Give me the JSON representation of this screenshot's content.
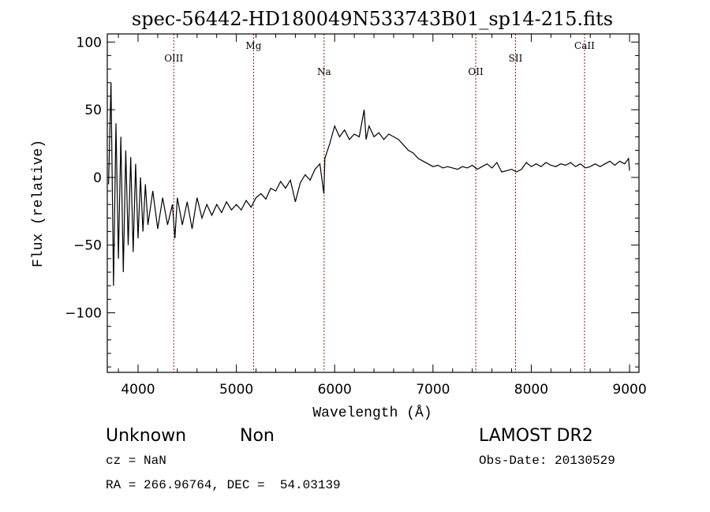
{
  "chart_data": {
    "type": "line",
    "title": "spec-56442-HD180049N533743B01_sp14-215.fits",
    "xlabel": "Wavelength (Å)",
    "ylabel": "Flux (relative)",
    "xlim": [
      3687,
      9096
    ],
    "ylim": [
      -144,
      106
    ],
    "xticks": [
      4000,
      5000,
      6000,
      7000,
      8000,
      9000
    ],
    "yticks": [
      100,
      50,
      0,
      -50,
      -100
    ],
    "xtick_labels": [
      "4000",
      "5000",
      "6000",
      "7000",
      "8000",
      "9000"
    ],
    "ytick_labels": [
      "100",
      "50",
      "0",
      "−50",
      "−100"
    ],
    "grid": false,
    "lines": [
      {
        "label": "OIII",
        "x": 4363
      },
      {
        "label": "Mg",
        "x": 5175
      },
      {
        "label": "Na",
        "x": 5893
      },
      {
        "label": "OII",
        "x": 7435
      },
      {
        "label": "SII",
        "x": 7840
      },
      {
        "label": "CaII",
        "x": 8542
      }
    ],
    "series": [
      {
        "name": "flux",
        "x": [
          3700,
          3725,
          3750,
          3775,
          3800,
          3825,
          3850,
          3875,
          3900,
          3925,
          3950,
          3975,
          4000,
          4025,
          4050,
          4075,
          4100,
          4150,
          4200,
          4250,
          4300,
          4350,
          4375,
          4400,
          4450,
          4500,
          4550,
          4600,
          4650,
          4700,
          4750,
          4800,
          4850,
          4900,
          4950,
          5000,
          5050,
          5100,
          5150,
          5200,
          5250,
          5300,
          5350,
          5400,
          5450,
          5500,
          5550,
          5600,
          5650,
          5700,
          5750,
          5800,
          5850,
          5890,
          5900,
          5950,
          6000,
          6050,
          6100,
          6150,
          6200,
          6250,
          6300,
          6320,
          6350,
          6400,
          6450,
          6500,
          6550,
          6600,
          6650,
          6700,
          6750,
          6800,
          6850,
          6900,
          6950,
          7000,
          7050,
          7100,
          7150,
          7200,
          7250,
          7300,
          7350,
          7400,
          7450,
          7500,
          7550,
          7600,
          7650,
          7700,
          7750,
          7800,
          7850,
          7900,
          7950,
          8000,
          8050,
          8100,
          8150,
          8200,
          8250,
          8300,
          8350,
          8400,
          8450,
          8500,
          8550,
          8600,
          8650,
          8700,
          8750,
          8800,
          8850,
          8900,
          8950,
          8990,
          9000
        ],
        "y": [
          -5,
          70,
          -80,
          40,
          -60,
          30,
          -70,
          20,
          -50,
          15,
          -55,
          10,
          -45,
          0,
          -40,
          -5,
          -35,
          -10,
          -38,
          -15,
          -35,
          -20,
          -45,
          -15,
          -35,
          -18,
          -38,
          -15,
          -30,
          -20,
          -28,
          -20,
          -26,
          -18,
          -24,
          -20,
          -24,
          -17,
          -22,
          -15,
          -12,
          -16,
          -8,
          -10,
          -3,
          -8,
          -2,
          -18,
          -4,
          2,
          -2,
          6,
          10,
          -12,
          14,
          25,
          38,
          30,
          35,
          28,
          32,
          30,
          50,
          28,
          38,
          30,
          33,
          28,
          32,
          30,
          28,
          24,
          20,
          18,
          14,
          12,
          10,
          8,
          9,
          7,
          8,
          7,
          6,
          8,
          7,
          9,
          6,
          8,
          10,
          7,
          11,
          4,
          5,
          6,
          4,
          6,
          11,
          8,
          10,
          8,
          11,
          9,
          8,
          10,
          9,
          11,
          8,
          10,
          7,
          8,
          10,
          8,
          10,
          12,
          9,
          12,
          10,
          14,
          5
        ]
      }
    ]
  },
  "footer": {
    "class_text": "Unknown",
    "subclass_text": "Non",
    "cz_text": "cz = NaN",
    "coords_text": "RA = 266.96764, DEC =  54.03139",
    "survey_text": "LAMOST DR2",
    "obs_date_text": "Obs-Date: 20130529"
  },
  "colors": {
    "spectrum": "#000000",
    "line_marker": "#8b1a1a"
  }
}
